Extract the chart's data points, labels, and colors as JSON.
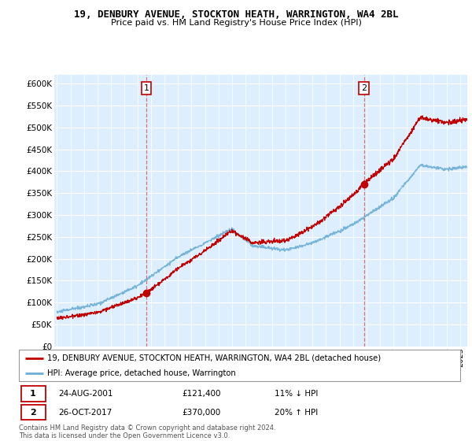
{
  "title": "19, DENBURY AVENUE, STOCKTON HEATH, WARRINGTON, WA4 2BL",
  "subtitle": "Price paid vs. HM Land Registry's House Price Index (HPI)",
  "legend_line1": "19, DENBURY AVENUE, STOCKTON HEATH, WARRINGTON, WA4 2BL (detached house)",
  "legend_line2": "HPI: Average price, detached house, Warrington",
  "footnote": "Contains HM Land Registry data © Crown copyright and database right 2024.\nThis data is licensed under the Open Government Licence v3.0.",
  "annotation1": {
    "label": "1",
    "date": "24-AUG-2001",
    "price": "£121,400",
    "pct": "11% ↓ HPI"
  },
  "annotation2": {
    "label": "2",
    "date": "26-OCT-2017",
    "price": "£370,000",
    "pct": "20% ↑ HPI"
  },
  "hpi_color": "#6baed6",
  "price_color": "#c00000",
  "dashed_color": "#d45f5f",
  "grid_color": "#c8d8e8",
  "bg_color": "#ddeeff",
  "background_color": "#ffffff",
  "ylim": [
    0,
    620000
  ],
  "yticks": [
    0,
    50000,
    100000,
    150000,
    200000,
    250000,
    300000,
    350000,
    400000,
    450000,
    500000,
    550000,
    600000
  ],
  "sale1_x": 2001.65,
  "sale1_y": 121400,
  "sale2_x": 2017.82,
  "sale2_y": 370000,
  "xmin": 1995,
  "xmax": 2025
}
